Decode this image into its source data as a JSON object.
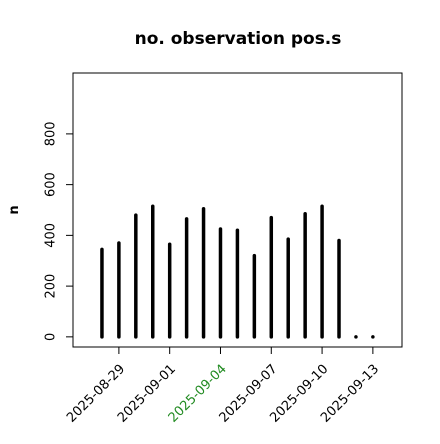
{
  "chart_data": {
    "type": "bar",
    "title": "no. observation pos.s",
    "y_label": "n",
    "x": [
      "2025-08-28",
      "2025-08-29",
      "2025-08-30",
      "2025-08-31",
      "2025-09-01",
      "2025-09-02",
      "2025-09-03",
      "2025-09-04",
      "2025-09-05",
      "2025-09-06",
      "2025-09-07",
      "2025-09-08",
      "2025-09-09",
      "2025-09-10",
      "2025-09-11",
      "2025-09-12",
      "2025-09-13"
    ],
    "values": [
      345,
      370,
      480,
      515,
      365,
      465,
      505,
      425,
      420,
      320,
      470,
      385,
      485,
      515,
      380,
      0,
      0
    ],
    "color": "#000000",
    "ylim": [
      -40,
      1040
    ],
    "yticks": [
      0,
      200,
      400,
      600,
      800
    ],
    "xticks": [
      "2025-08-29",
      "2025-09-01",
      "2025-09-04",
      "2025-09-07",
      "2025-09-10",
      "2025-09-13"
    ],
    "xtick_label_colors": [
      "#000000",
      "#000000",
      "#228b22",
      "#000000",
      "#000000",
      "#000000"
    ]
  }
}
